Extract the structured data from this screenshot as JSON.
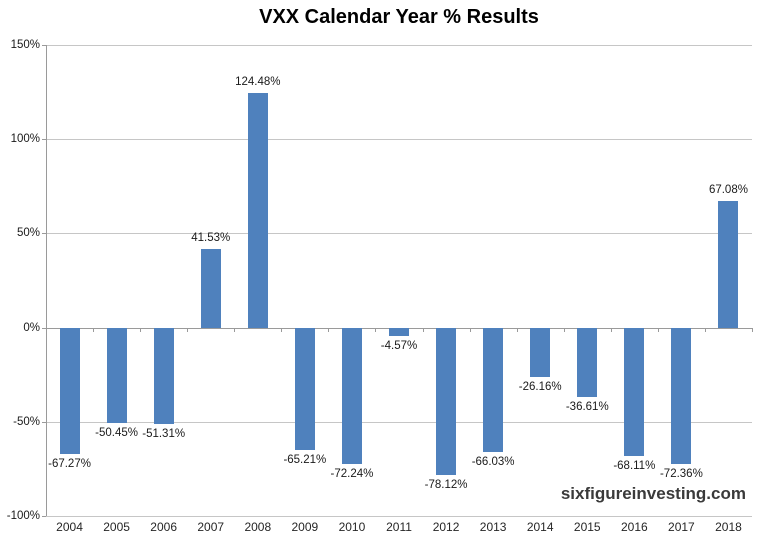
{
  "title": "VXX Calendar Year % Results",
  "watermark": {
    "text": "sixfigureinvesting.com"
  },
  "chart_data": {
    "type": "bar",
    "title": "VXX Calendar Year % Results",
    "categories": [
      "2004",
      "2005",
      "2006",
      "2007",
      "2008",
      "2009",
      "2010",
      "2011",
      "2012",
      "2013",
      "2014",
      "2015",
      "2016",
      "2017",
      "2018"
    ],
    "values": [
      -67.27,
      -50.45,
      -51.31,
      41.53,
      124.48,
      -65.21,
      -72.24,
      -4.57,
      -78.12,
      -66.03,
      -26.16,
      -36.61,
      -68.11,
      -72.36,
      67.08
    ],
    "data_labels": [
      "-67.27%",
      "-50.45%",
      "-51.31%",
      "41.53%",
      "124.48%",
      "-65.21%",
      "-72.24%",
      "-4.57%",
      "-78.12%",
      "-66.03%",
      "-26.16%",
      "-36.61%",
      "-68.11%",
      "-72.36%",
      "67.08%"
    ],
    "xlabel": "",
    "ylabel": "",
    "ylim": [
      -100,
      150
    ],
    "yticks": [
      {
        "value": 150,
        "label": "150%"
      },
      {
        "value": 100,
        "label": "100%"
      },
      {
        "value": 50,
        "label": "50%"
      },
      {
        "value": 0,
        "label": "0%"
      },
      {
        "value": -50,
        "label": "-50%"
      },
      {
        "value": -100,
        "label": "-100%"
      }
    ],
    "grid": true,
    "legend": "none",
    "bar_color": "#4F81BD",
    "gridline_color": "#C6C6C6",
    "axis_color": "#9A9A9A",
    "label_color": "#1A1A1A"
  }
}
